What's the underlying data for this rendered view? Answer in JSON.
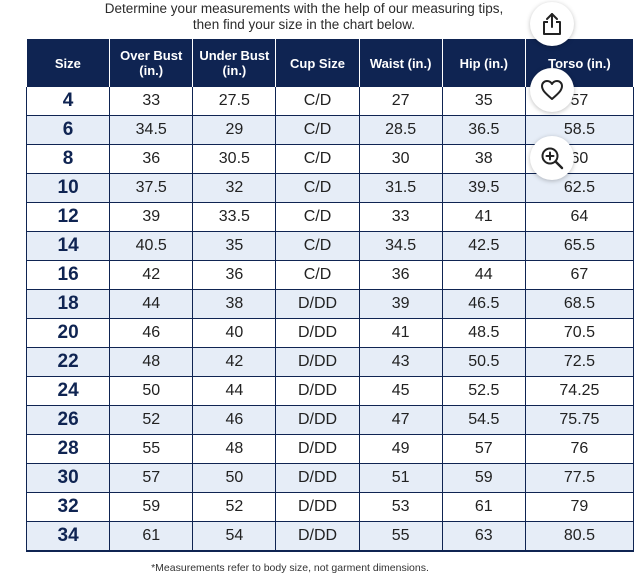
{
  "intro": {
    "line1": "Determine your measurements with the help of our measuring tips,",
    "line2": "then find your size in the chart below."
  },
  "table": {
    "headers": [
      "Size",
      "Over Bust (in.)",
      "Under Bust (in.)",
      "Cup Size",
      "Waist (in.)",
      "Hip (in.)",
      "Torso (in.)"
    ],
    "rows": [
      [
        "4",
        "33",
        "27.5",
        "C/D",
        "27",
        "35",
        "57"
      ],
      [
        "6",
        "34.5",
        "29",
        "C/D",
        "28.5",
        "36.5",
        "58.5"
      ],
      [
        "8",
        "36",
        "30.5",
        "C/D",
        "30",
        "38",
        "60"
      ],
      [
        "10",
        "37.5",
        "32",
        "C/D",
        "31.5",
        "39.5",
        "62.5"
      ],
      [
        "12",
        "39",
        "33.5",
        "C/D",
        "33",
        "41",
        "64"
      ],
      [
        "14",
        "40.5",
        "35",
        "C/D",
        "34.5",
        "42.5",
        "65.5"
      ],
      [
        "16",
        "42",
        "36",
        "C/D",
        "36",
        "44",
        "67"
      ],
      [
        "18",
        "44",
        "38",
        "D/DD",
        "39",
        "46.5",
        "68.5"
      ],
      [
        "20",
        "46",
        "40",
        "D/DD",
        "41",
        "48.5",
        "70.5"
      ],
      [
        "22",
        "48",
        "42",
        "D/DD",
        "43",
        "50.5",
        "72.5"
      ],
      [
        "24",
        "50",
        "44",
        "D/DD",
        "45",
        "52.5",
        "74.25"
      ],
      [
        "26",
        "52",
        "46",
        "D/DD",
        "47",
        "54.5",
        "75.75"
      ],
      [
        "28",
        "55",
        "48",
        "D/DD",
        "49",
        "57",
        "76"
      ],
      [
        "30",
        "57",
        "50",
        "D/DD",
        "51",
        "59",
        "77.5"
      ],
      [
        "32",
        "59",
        "52",
        "D/DD",
        "53",
        "61",
        "79"
      ],
      [
        "34",
        "61",
        "54",
        "D/DD",
        "55",
        "63",
        "80.5"
      ]
    ]
  },
  "footnote": "*Measurements refer to body size, not garment dimensions.",
  "actions": [
    {
      "name": "share",
      "icon": "share-icon"
    },
    {
      "name": "like",
      "icon": "heart-icon"
    },
    {
      "name": "zoom",
      "icon": "zoom-in-icon"
    }
  ],
  "colors": {
    "header_bg": "#0f2452",
    "stripe": "#e6edf7",
    "text": "#222222"
  }
}
